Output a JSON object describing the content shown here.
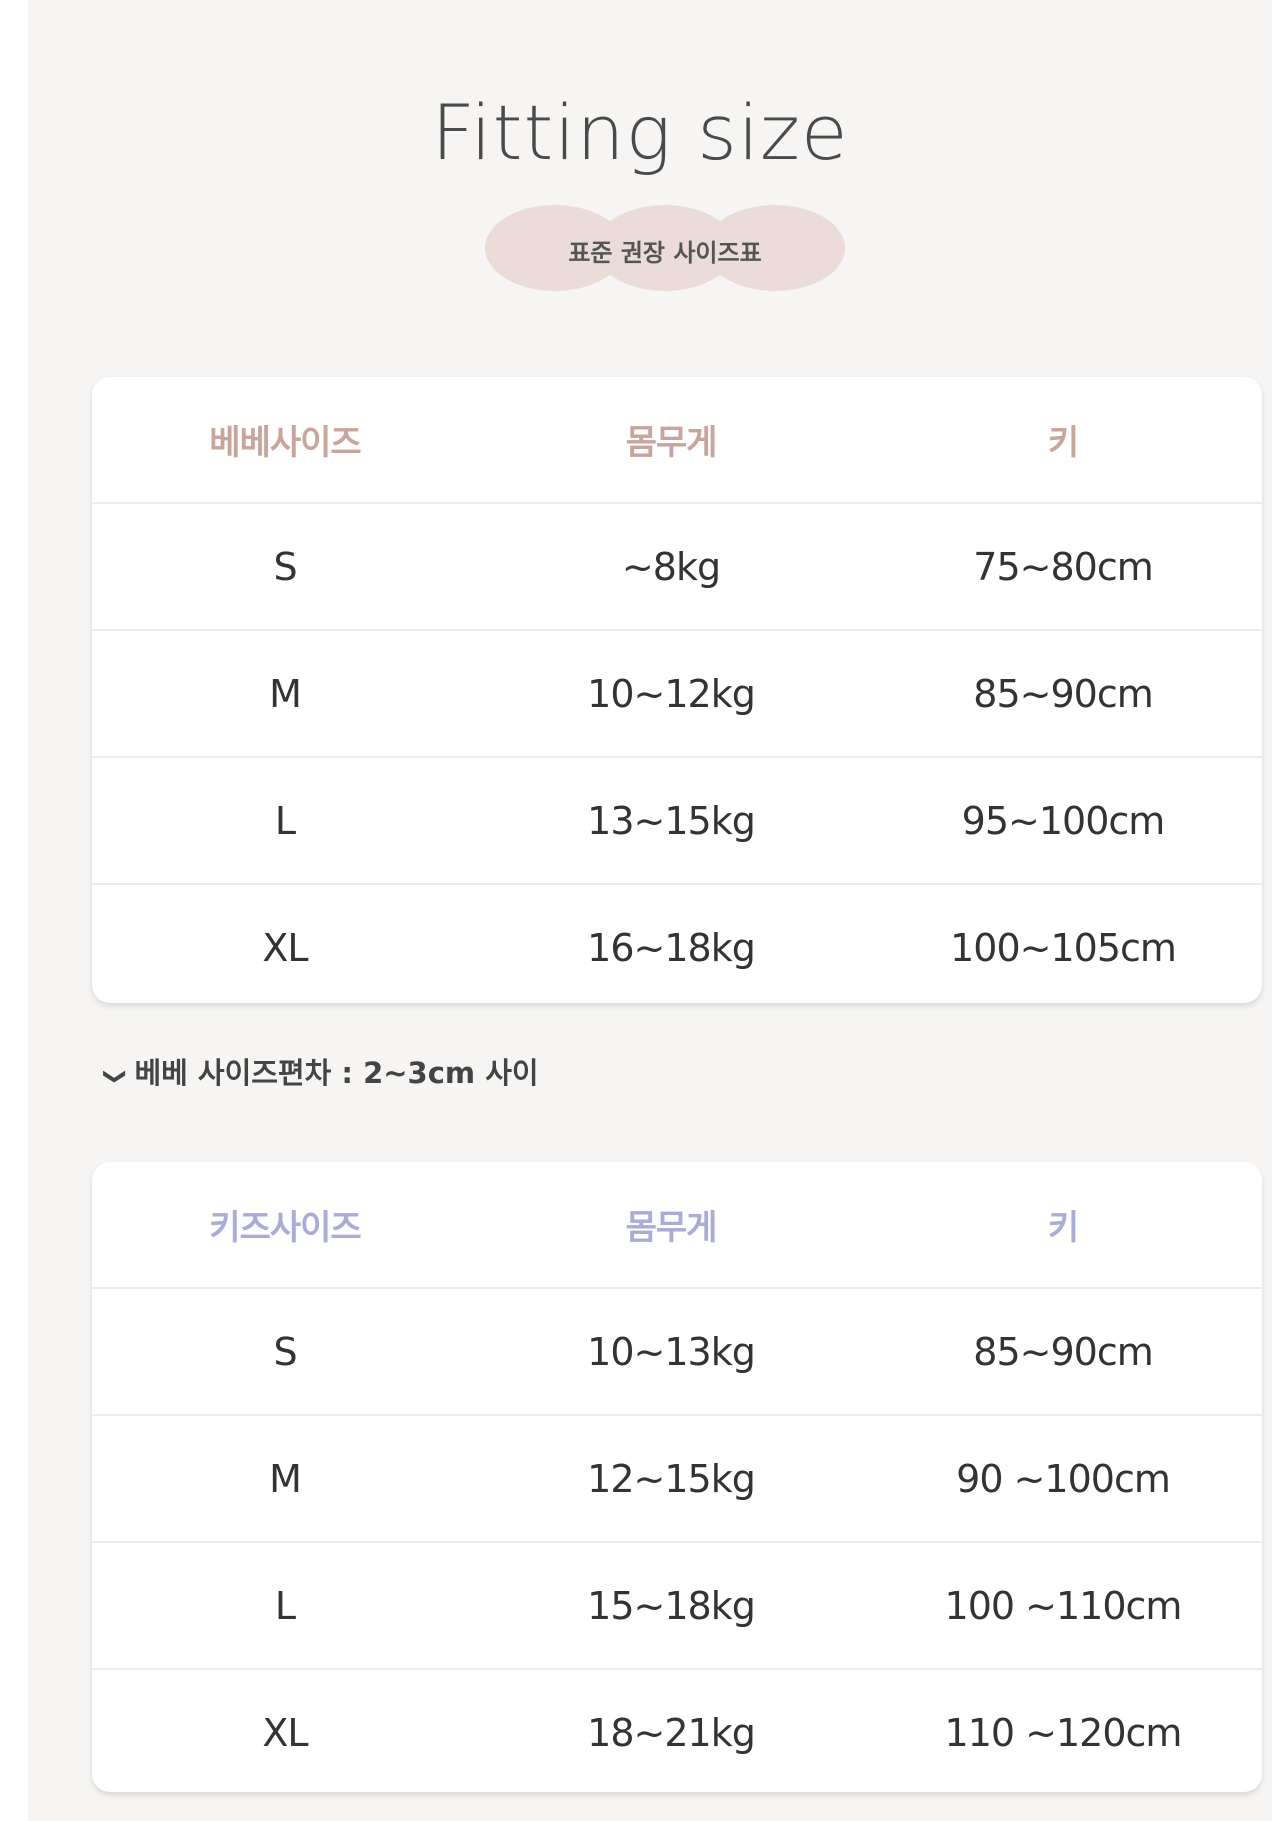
{
  "title": "Fitting size",
  "subtitle": "표준 권장 사이즈표",
  "colors": {
    "background": "#f6f5f3",
    "bebe_header": "#c8a49b",
    "kids_header": "#a9abd8",
    "pill": "#ecdcd9"
  },
  "bebe_table": {
    "headers": [
      "베베사이즈",
      "몸무게",
      "키"
    ],
    "rows": [
      [
        "S",
        "~8kg",
        "75~80cm"
      ],
      [
        "M",
        "10~12kg",
        "85~90cm"
      ],
      [
        "L",
        "13~15kg",
        "95~100cm"
      ],
      [
        "XL",
        "16~18kg",
        "100~105cm"
      ]
    ]
  },
  "note": {
    "icon": "chevron-down-icon",
    "text": "베베 사이즈편차 : 2~3cm 사이"
  },
  "kids_table": {
    "headers": [
      "키즈사이즈",
      "몸무게",
      "키"
    ],
    "rows": [
      [
        "S",
        "10~13kg",
        "85~90cm"
      ],
      [
        "M",
        "12~15kg",
        "90 ~100cm"
      ],
      [
        "L",
        "15~18kg",
        "100 ~110cm"
      ],
      [
        "XL",
        "18~21kg",
        "110 ~120cm"
      ]
    ]
  }
}
